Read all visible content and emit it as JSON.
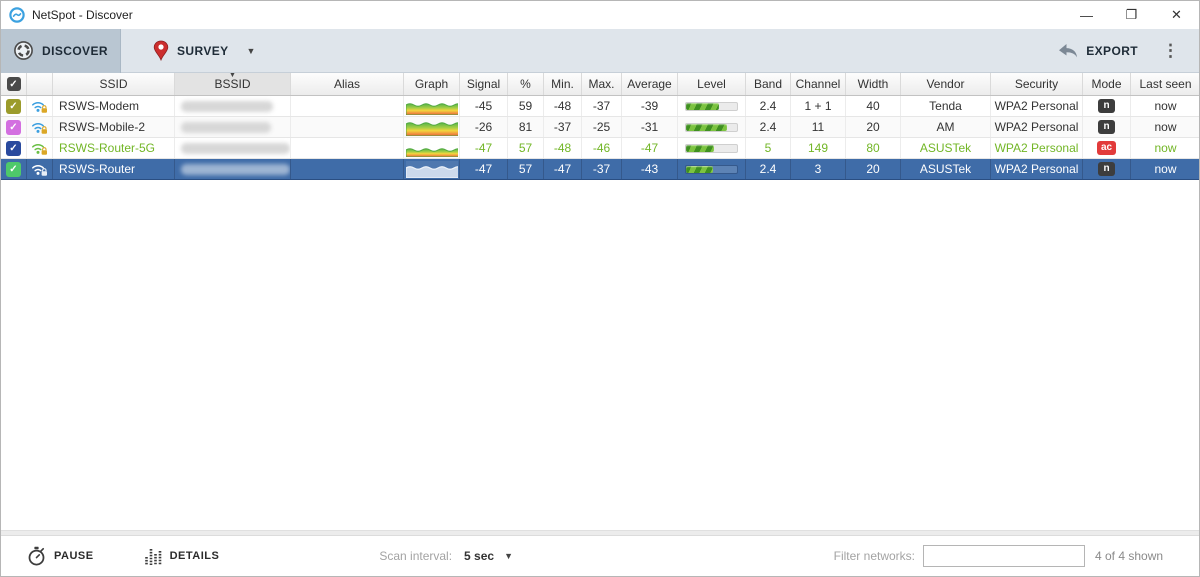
{
  "window": {
    "title": "NetSpot - Discover",
    "controls": {
      "minimize": "—",
      "maximize": "❐",
      "close": "✕"
    }
  },
  "toolbar": {
    "discover": "DISCOVER",
    "survey": "SURVEY",
    "export": "EXPORT"
  },
  "table": {
    "columns": [
      "",
      "",
      "SSID",
      "BSSID",
      "Alias",
      "Graph",
      "Signal",
      "%",
      "Min.",
      "Max.",
      "Average",
      "Level",
      "Band",
      "Channel",
      "Width",
      "Vendor",
      "Security",
      "Mode",
      "Last seen"
    ],
    "sorted_column": "BSSID",
    "sort_direction": "desc",
    "rows": [
      {
        "checked": true,
        "checkbox_color": "#9b9b2b",
        "wifi_color": "#3b9fe0",
        "lock_color": "#dba726",
        "ssid": "RSWS-Modem",
        "bssid_redacted": true,
        "bssid_mask_width": 92,
        "alias": "",
        "graph_top": 0.34,
        "signal": "-45",
        "percent": "59",
        "min": "-48",
        "max": "-37",
        "average": "-39",
        "level_percent": 64,
        "band": "2.4",
        "channel": "1 + 1",
        "width": "40",
        "vendor": "Tenda",
        "security": "WPA2 Personal",
        "mode": "n",
        "mode_color": "#3d3d3d",
        "last_seen": "now",
        "selected": false,
        "text_color": "#333333"
      },
      {
        "checked": true,
        "checkbox_color": "#d36fe0",
        "wifi_color": "#3b9fe0",
        "lock_color": "#dba726",
        "ssid": "RSWS-Mobile-2",
        "bssid_redacted": true,
        "bssid_mask_width": 90,
        "alias": "",
        "graph_top": 0.24,
        "signal": "-26",
        "percent": "81",
        "min": "-37",
        "max": "-25",
        "average": "-31",
        "level_percent": 80,
        "band": "2.4",
        "channel": "11",
        "width": "20",
        "vendor": "AM",
        "security": "WPA2 Personal",
        "mode": "n",
        "mode_color": "#3d3d3d",
        "last_seen": "now",
        "selected": false,
        "text_color": "#333333"
      },
      {
        "checked": true,
        "checkbox_color": "#2a4a9e",
        "wifi_color": "#6abf45",
        "lock_color": "#dba726",
        "ssid": "RSWS-Router-5G",
        "bssid_redacted": true,
        "bssid_mask_width": 118,
        "alias": "",
        "graph_top": 0.52,
        "signal": "-47",
        "percent": "57",
        "min": "-48",
        "max": "-46",
        "average": "-47",
        "level_percent": 55,
        "band": "5",
        "channel": "149",
        "width": "80",
        "vendor": "ASUSTek",
        "security": "WPA2 Personal",
        "mode": "ac",
        "mode_color": "#e23b3b",
        "last_seen": "now",
        "selected": false,
        "text_color": "#72b626"
      },
      {
        "checked": true,
        "checkbox_color": "#4ec96a",
        "wifi_color": "#ffffff",
        "lock_color": "#e8eef6",
        "ssid": "RSWS-Router",
        "bssid_redacted": true,
        "bssid_mask_width": 112,
        "alias": "",
        "graph_top": 0.38,
        "signal": "-47",
        "percent": "57",
        "min": "-47",
        "max": "-37",
        "average": "-43",
        "level_percent": 52,
        "band": "2.4",
        "channel": "3",
        "width": "20",
        "vendor": "ASUSTek",
        "security": "WPA2 Personal",
        "mode": "n",
        "mode_color": "#3d3d3d",
        "last_seen": "now",
        "selected": true,
        "text_color": "#ffffff"
      }
    ]
  },
  "statusbar": {
    "pause": "PAUSE",
    "details": "DETAILS",
    "scan_interval_label": "Scan interval:",
    "scan_interval_value": "5 sec",
    "filter_label": "Filter networks:",
    "filter_value": "",
    "shown_count": "4 of 4 shown"
  },
  "colors": {
    "selected_row": "#3f6ca8",
    "active_tab": "#b9c6d2",
    "toolbar": "#dfe5eb"
  }
}
